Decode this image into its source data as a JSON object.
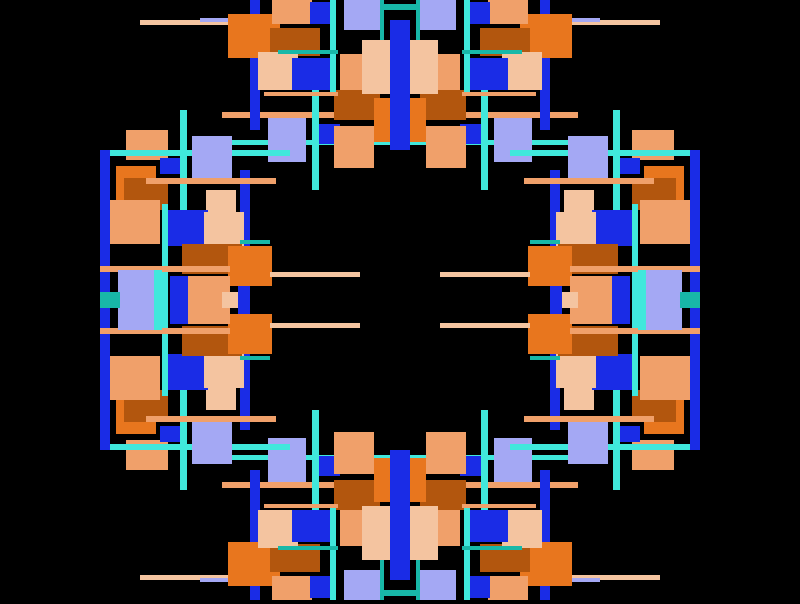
{
  "artwork": {
    "background_color": "#000000",
    "symmetry": "mirrored",
    "palette": {
      "blue": "#1a2ce6",
      "lavender": "#a4a8f4",
      "orange": "#e8761e",
      "light_orange": "#f0a06a",
      "peach": "#f4c4a0",
      "brown": "#b2560e",
      "cyan": "#40e8dc",
      "teal": "#18b8a8"
    }
  }
}
